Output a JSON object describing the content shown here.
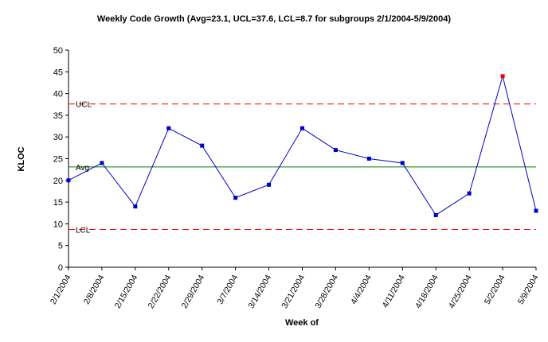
{
  "chart_data": {
    "type": "line",
    "title": "Weekly Code Growth (Avg=23.1, UCL=37.6, LCL=8.7 for subgroups 2/1/2004-5/9/2004)",
    "xlabel": "Week of",
    "ylabel": "KLOC",
    "ylim": [
      0,
      50
    ],
    "yticks": [
      0,
      5,
      10,
      15,
      20,
      25,
      30,
      35,
      40,
      45,
      50
    ],
    "categories": [
      "2/1/2004",
      "2/8/2004",
      "2/15/2004",
      "2/22/2004",
      "2/29/2004",
      "3/7/2004",
      "3/14/2004",
      "3/21/2004",
      "3/28/2004",
      "4/4/2004",
      "4/11/2004",
      "4/18/2004",
      "4/25/2004",
      "5/2/2004",
      "5/9/2004"
    ],
    "series": [
      {
        "values": [
          20,
          24,
          14,
          32,
          28,
          16,
          19,
          32,
          27,
          25,
          24,
          12,
          17,
          44,
          13
        ],
        "color": "#0000cc",
        "highlight_color": "#ff0000",
        "highlight_index": 13
      }
    ],
    "reference_lines": [
      {
        "label": "UCL",
        "value": 37.6,
        "color": "#ff0000",
        "style": "dashed"
      },
      {
        "label": "Avg",
        "value": 23.1,
        "color": "#008000",
        "style": "solid"
      },
      {
        "label": "LCL",
        "value": 8.7,
        "color": "#ff0000",
        "style": "dashed"
      }
    ],
    "grid": false,
    "legend": "none"
  }
}
